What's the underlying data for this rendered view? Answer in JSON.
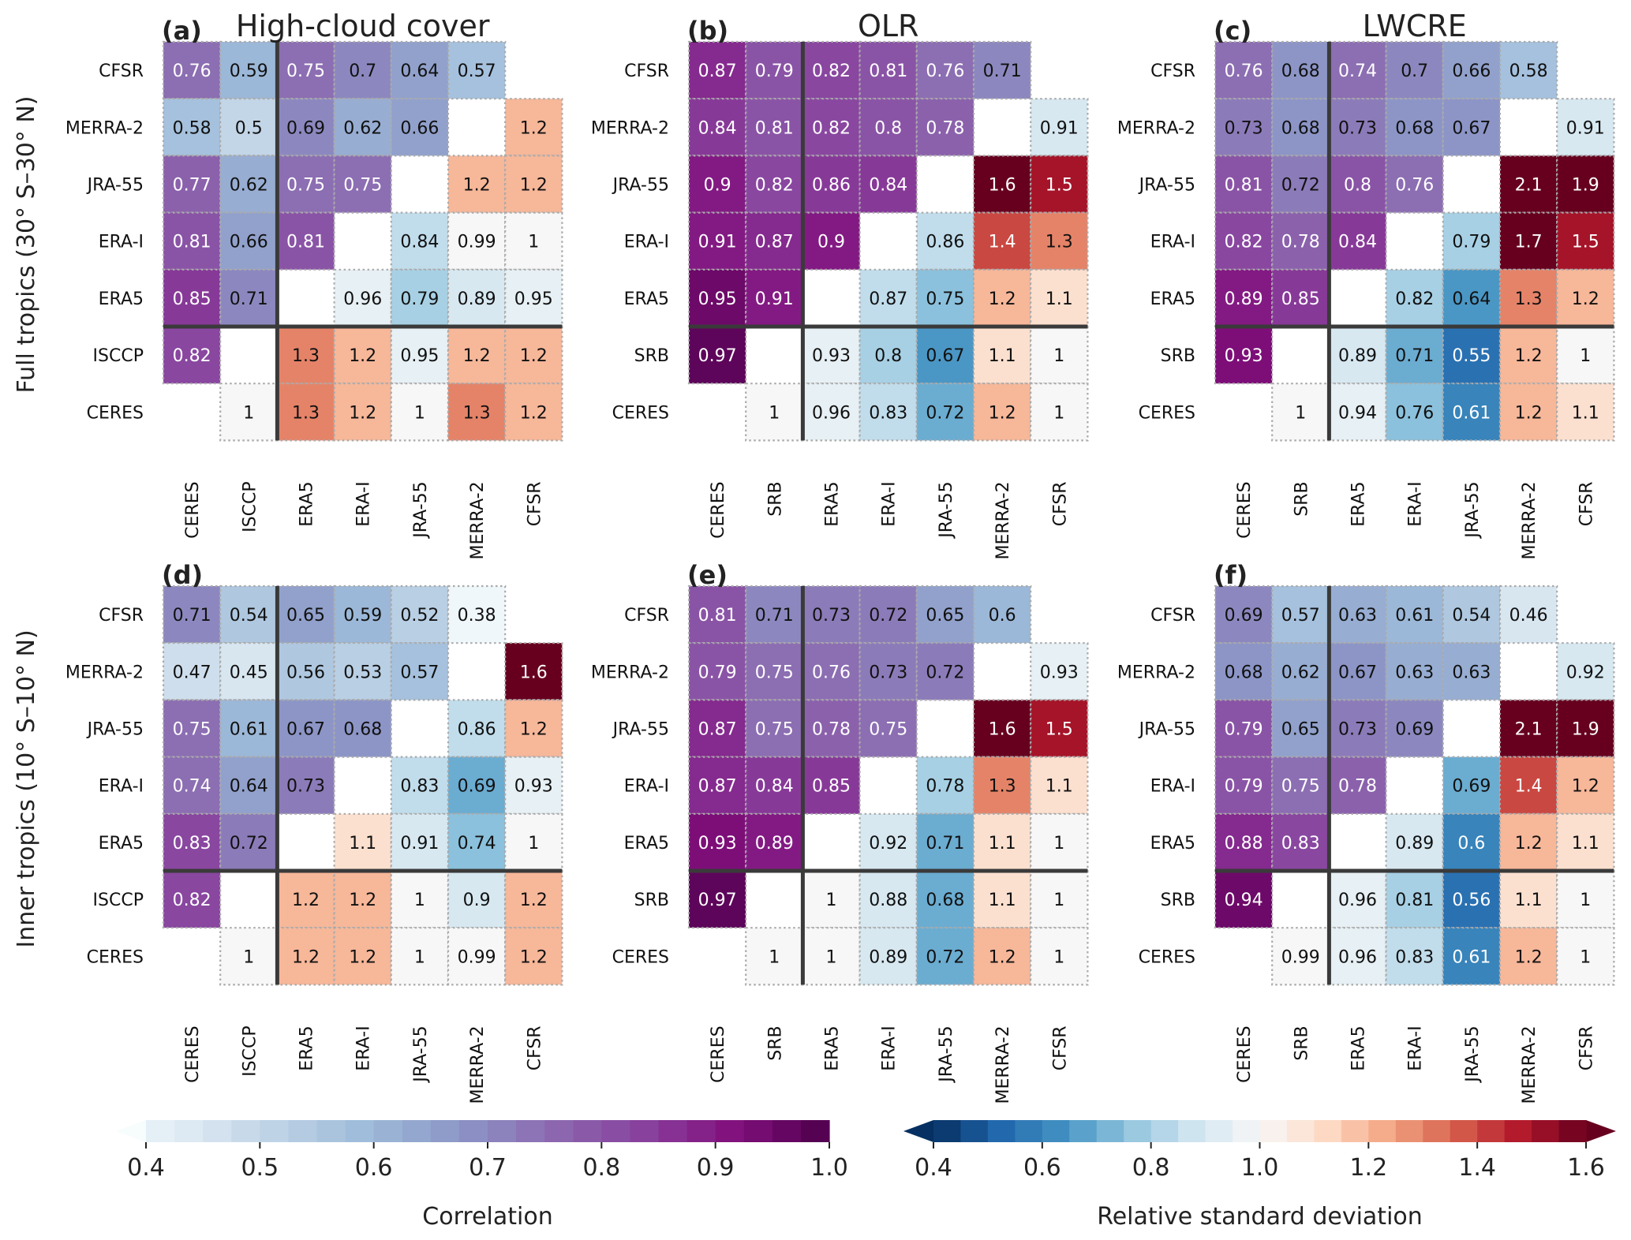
{
  "chart_data": {
    "type": "heatmap",
    "description_lower_triangle": "Correlation",
    "description_upper_triangle": "Relative standard deviation",
    "row_titles": [
      "Full tropics (30° S–30° N)",
      "Inner tropics (10° S–10° N)"
    ],
    "column_titles": [
      "High-cloud cover",
      "OLR",
      "LWCRE"
    ],
    "panels": [
      {
        "label": "(a)",
        "title": "High-cloud cover",
        "rows": [
          "CFSR",
          "MERRA-2",
          "JRA-55",
          "ERA-I",
          "ERA5",
          "ISCCP",
          "CERES"
        ],
        "cols": [
          "CERES",
          "ISCCP",
          "ERA5",
          "ERA-I",
          "JRA-55",
          "MERRA-2",
          "CFSR"
        ],
        "values": [
          [
            0.76,
            0.59,
            0.75,
            0.7,
            0.64,
            0.57,
            null
          ],
          [
            0.58,
            0.5,
            0.69,
            0.62,
            0.66,
            null,
            1.2
          ],
          [
            0.77,
            0.62,
            0.75,
            0.75,
            null,
            1.2,
            1.2
          ],
          [
            0.81,
            0.66,
            0.81,
            null,
            0.84,
            0.99,
            1
          ],
          [
            0.85,
            0.71,
            null,
            0.96,
            0.79,
            0.89,
            0.95
          ],
          [
            0.82,
            null,
            1.3,
            1.2,
            0.95,
            1.2,
            1.2
          ],
          [
            null,
            1,
            1.3,
            1.2,
            1,
            1.3,
            1.2
          ]
        ]
      },
      {
        "label": "(b)",
        "title": "OLR",
        "rows": [
          "CFSR",
          "MERRA-2",
          "JRA-55",
          "ERA-I",
          "ERA5",
          "SRB",
          "CERES"
        ],
        "cols": [
          "CERES",
          "SRB",
          "ERA5",
          "ERA-I",
          "JRA-55",
          "MERRA-2",
          "CFSR"
        ],
        "values": [
          [
            0.87,
            0.79,
            0.82,
            0.81,
            0.76,
            0.71,
            null
          ],
          [
            0.84,
            0.81,
            0.82,
            0.8,
            0.78,
            null,
            0.91
          ],
          [
            0.9,
            0.82,
            0.86,
            0.84,
            null,
            1.6,
            1.5
          ],
          [
            0.91,
            0.87,
            0.9,
            null,
            0.86,
            1.4,
            1.3
          ],
          [
            0.95,
            0.91,
            null,
            0.87,
            0.75,
            1.2,
            1.1
          ],
          [
            0.97,
            null,
            0.93,
            0.8,
            0.67,
            1.1,
            1
          ],
          [
            null,
            1,
            0.96,
            0.83,
            0.72,
            1.2,
            1
          ]
        ]
      },
      {
        "label": "(c)",
        "title": "LWCRE",
        "rows": [
          "CFSR",
          "MERRA-2",
          "JRA-55",
          "ERA-I",
          "ERA5",
          "SRB",
          "CERES"
        ],
        "cols": [
          "CERES",
          "SRB",
          "ERA5",
          "ERA-I",
          "JRA-55",
          "MERRA-2",
          "CFSR"
        ],
        "values": [
          [
            0.76,
            0.68,
            0.74,
            0.7,
            0.66,
            0.58,
            null
          ],
          [
            0.73,
            0.68,
            0.73,
            0.68,
            0.67,
            null,
            0.91
          ],
          [
            0.81,
            0.72,
            0.8,
            0.76,
            null,
            2.1,
            1.9
          ],
          [
            0.82,
            0.78,
            0.84,
            null,
            0.79,
            1.7,
            1.5
          ],
          [
            0.89,
            0.85,
            null,
            0.82,
            0.64,
            1.3,
            1.2
          ],
          [
            0.93,
            null,
            0.89,
            0.71,
            0.55,
            1.2,
            1
          ],
          [
            null,
            1,
            0.94,
            0.76,
            0.61,
            1.2,
            1.1
          ]
        ]
      },
      {
        "label": "(d)",
        "title": "",
        "rows": [
          "CFSR",
          "MERRA-2",
          "JRA-55",
          "ERA-I",
          "ERA5",
          "ISCCP",
          "CERES"
        ],
        "cols": [
          "CERES",
          "ISCCP",
          "ERA5",
          "ERA-I",
          "JRA-55",
          "MERRA-2",
          "CFSR"
        ],
        "values": [
          [
            0.71,
            0.54,
            0.65,
            0.59,
            0.52,
            0.38,
            null
          ],
          [
            0.47,
            0.45,
            0.56,
            0.53,
            0.57,
            null,
            1.6
          ],
          [
            0.75,
            0.61,
            0.67,
            0.68,
            null,
            0.86,
            1.2
          ],
          [
            0.74,
            0.64,
            0.73,
            null,
            0.83,
            0.69,
            0.93
          ],
          [
            0.83,
            0.72,
            null,
            1.1,
            0.91,
            0.74,
            1
          ],
          [
            0.82,
            null,
            1.2,
            1.2,
            1,
            0.9,
            1.2
          ],
          [
            null,
            1,
            1.2,
            1.2,
            1,
            0.99,
            1.2
          ]
        ]
      },
      {
        "label": "(e)",
        "title": "",
        "rows": [
          "CFSR",
          "MERRA-2",
          "JRA-55",
          "ERA-I",
          "ERA5",
          "SRB",
          "CERES"
        ],
        "cols": [
          "CERES",
          "SRB",
          "ERA5",
          "ERA-I",
          "JRA-55",
          "MERRA-2",
          "CFSR"
        ],
        "values": [
          [
            0.81,
            0.71,
            0.73,
            0.72,
            0.65,
            0.6,
            null
          ],
          [
            0.79,
            0.75,
            0.76,
            0.73,
            0.72,
            null,
            0.93
          ],
          [
            0.87,
            0.75,
            0.78,
            0.75,
            null,
            1.6,
            1.5
          ],
          [
            0.87,
            0.84,
            0.85,
            null,
            0.78,
            1.3,
            1.1
          ],
          [
            0.93,
            0.89,
            null,
            0.92,
            0.71,
            1.1,
            1
          ],
          [
            0.97,
            null,
            1,
            0.88,
            0.68,
            1.1,
            1
          ],
          [
            null,
            1,
            1,
            0.89,
            0.72,
            1.2,
            1
          ]
        ]
      },
      {
        "label": "(f)",
        "title": "",
        "rows": [
          "CFSR",
          "MERRA-2",
          "JRA-55",
          "ERA-I",
          "ERA5",
          "SRB",
          "CERES"
        ],
        "cols": [
          "CERES",
          "SRB",
          "ERA5",
          "ERA-I",
          "JRA-55",
          "MERRA-2",
          "CFSR"
        ],
        "values": [
          [
            0.69,
            0.57,
            0.63,
            0.61,
            0.54,
            0.46,
            null
          ],
          [
            0.68,
            0.62,
            0.67,
            0.63,
            0.63,
            null,
            0.92
          ],
          [
            0.79,
            0.65,
            0.73,
            0.69,
            null,
            2.1,
            1.9
          ],
          [
            0.79,
            0.75,
            0.78,
            null,
            0.69,
            1.4,
            1.2
          ],
          [
            0.88,
            0.83,
            null,
            0.89,
            0.6,
            1.2,
            1.1
          ],
          [
            0.94,
            null,
            0.96,
            0.81,
            0.56,
            1.1,
            1
          ],
          [
            null,
            0.99,
            0.96,
            0.83,
            0.61,
            1.2,
            1
          ]
        ]
      }
    ],
    "colorbars": [
      {
        "label": "Correlation",
        "range": [
          0.4,
          1.0
        ],
        "ticks": [
          "0.4",
          "0.5",
          "0.6",
          "0.7",
          "0.8",
          "0.9",
          "1.0"
        ],
        "colormap": "BuPu",
        "extend": "min"
      },
      {
        "label": "Relative standard deviation",
        "range": [
          0.4,
          1.6
        ],
        "ticks": [
          "0.4",
          "0.6",
          "0.8",
          "1.0",
          "1.2",
          "1.4",
          "1.6"
        ],
        "colormap": "RdBu_r",
        "extend": "both"
      }
    ],
    "colors": {
      "separator": "#3a3a3a",
      "cell_border": "#aaaaaa",
      "text_dark": "#111111",
      "text_light": "#ffffff"
    }
  }
}
